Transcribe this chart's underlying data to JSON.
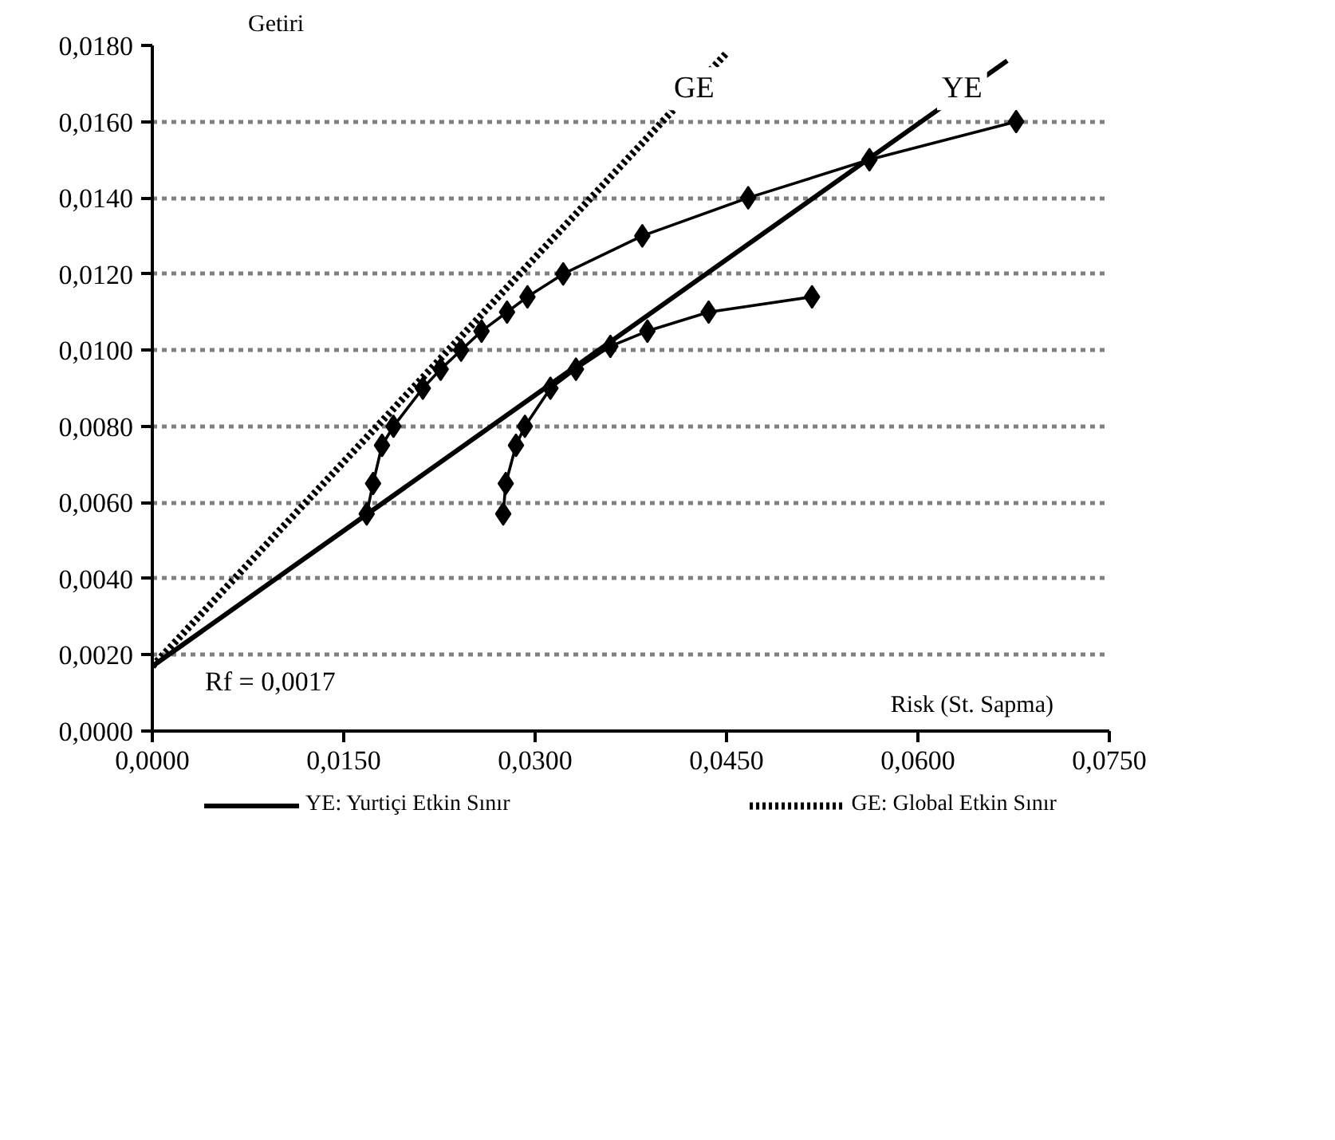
{
  "chart_data": {
    "type": "line",
    "xlabel": "Risk (St. Sapma)",
    "ylabel": "Getiri",
    "xlim": [
      0,
      0.075
    ],
    "ylim": [
      0,
      0.018
    ],
    "xticks": [
      {
        "value": 0,
        "label": "0,0000"
      },
      {
        "value": 0.015,
        "label": "0,0150"
      },
      {
        "value": 0.03,
        "label": "0,0300"
      },
      {
        "value": 0.045,
        "label": "0,0450"
      },
      {
        "value": 0.06,
        "label": "0,0600"
      },
      {
        "value": 0.075,
        "label": "0,0750"
      }
    ],
    "yticks": [
      {
        "value": 0,
        "label": "0,0000"
      },
      {
        "value": 0.002,
        "label": "0,0020"
      },
      {
        "value": 0.004,
        "label": "0,0040"
      },
      {
        "value": 0.006,
        "label": "0,0060"
      },
      {
        "value": 0.008,
        "label": "0,0080"
      },
      {
        "value": 0.01,
        "label": "0,0100"
      },
      {
        "value": 0.012,
        "label": "0,0120"
      },
      {
        "value": 0.014,
        "label": "0,0140"
      },
      {
        "value": 0.016,
        "label": "0,0160"
      },
      {
        "value": 0.018,
        "label": "0,0180"
      }
    ],
    "grid": "y",
    "legend": "bottom",
    "series": [
      {
        "name": "YE: Yurtiçi Etkin Sınır",
        "color": "#000000",
        "line_style": "solid",
        "marker": "none",
        "x": [
          0,
          0.067
        ],
        "values": [
          0.0017,
          0.0176
        ]
      },
      {
        "name": "GE: Global Etkin Sınır",
        "color": "#000000",
        "line_style": "dotted",
        "marker": "none",
        "x": [
          0,
          0.045
        ],
        "values": [
          0.0017,
          0.0178
        ]
      },
      {
        "color": "#000000",
        "line_style": "solid",
        "marker": "diamond",
        "x": [
          0.0168,
          0.0173,
          0.018,
          0.0189,
          0.0212,
          0.0226,
          0.0242,
          0.0258,
          0.0278,
          0.0294,
          0.0322,
          0.0384,
          0.0467,
          0.0562,
          0.0677
        ],
        "values": [
          0.0057,
          0.0065,
          0.0075,
          0.008,
          0.009,
          0.0095,
          0.01,
          0.0105,
          0.011,
          0.0114,
          0.012,
          0.013,
          0.014,
          0.015,
          0.016
        ]
      },
      {
        "color": "#000000",
        "line_style": "solid",
        "marker": "diamond",
        "x": [
          0.0275,
          0.0277,
          0.0285,
          0.0292,
          0.0312,
          0.0332,
          0.0359,
          0.0388,
          0.0436,
          0.0517
        ],
        "values": [
          0.0057,
          0.0065,
          0.0075,
          0.008,
          0.009,
          0.0095,
          0.0101,
          0.0105,
          0.011,
          0.0114
        ]
      }
    ],
    "annotations": [
      {
        "text": "GE",
        "x": 0.0405,
        "y": 0.0163
      },
      {
        "text": "YE",
        "x": 0.0615,
        "y": 0.0163
      },
      {
        "text": "Rf = 0,0017",
        "x": 0,
        "y": 0.0017
      }
    ]
  }
}
